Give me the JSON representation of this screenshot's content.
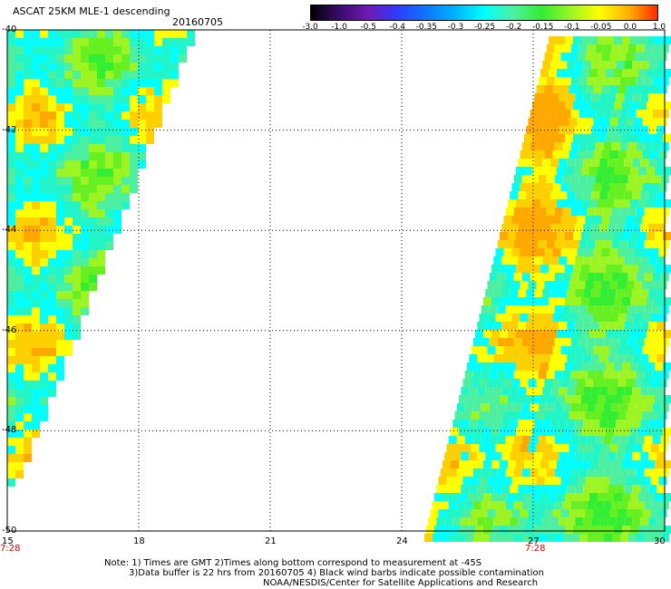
{
  "header": {
    "title": "ASCAT 25KM MLE-1 descending",
    "date": "20160705"
  },
  "colorbar": {
    "labels": [
      "-3.0",
      "-1.0",
      "-0.5",
      "-0.4",
      "-0.35",
      "-0.3",
      "-0.25",
      "-0.2",
      "-0.15",
      "-0.1",
      "-0.05",
      "0.0",
      "1.0"
    ],
    "colors": [
      "#000000",
      "#3a0d6e",
      "#6f1ab5",
      "#2f3cff",
      "#0a78ff",
      "#00b4ff",
      "#00ffff",
      "#4df0a0",
      "#33ee33",
      "#9cf522",
      "#ffff00",
      "#ffb000",
      "#ff2a00"
    ]
  },
  "axes": {
    "lat_labels": [
      "-40",
      "-42",
      "-44",
      "-46",
      "-48",
      "-50"
    ],
    "lon_labels": [
      "15",
      "18",
      "21",
      "24",
      "27",
      "30"
    ],
    "lat_range": [
      -50,
      -40
    ],
    "lon_range": [
      15,
      30
    ]
  },
  "times": [
    {
      "label": "7:28",
      "lon": 15
    },
    {
      "label": "7:28",
      "lon": 27
    }
  ],
  "notes": {
    "line1": "Note: 1) Times are GMT 2)Times along bottom correspond to measurement at -45S",
    "line2": "3)Data buffer is 22 hrs from 20160705 4) Black wind barbs indicate possible contamination",
    "line3": "NOAA/NESDIS/Center for Satellite Applications and Research"
  }
}
